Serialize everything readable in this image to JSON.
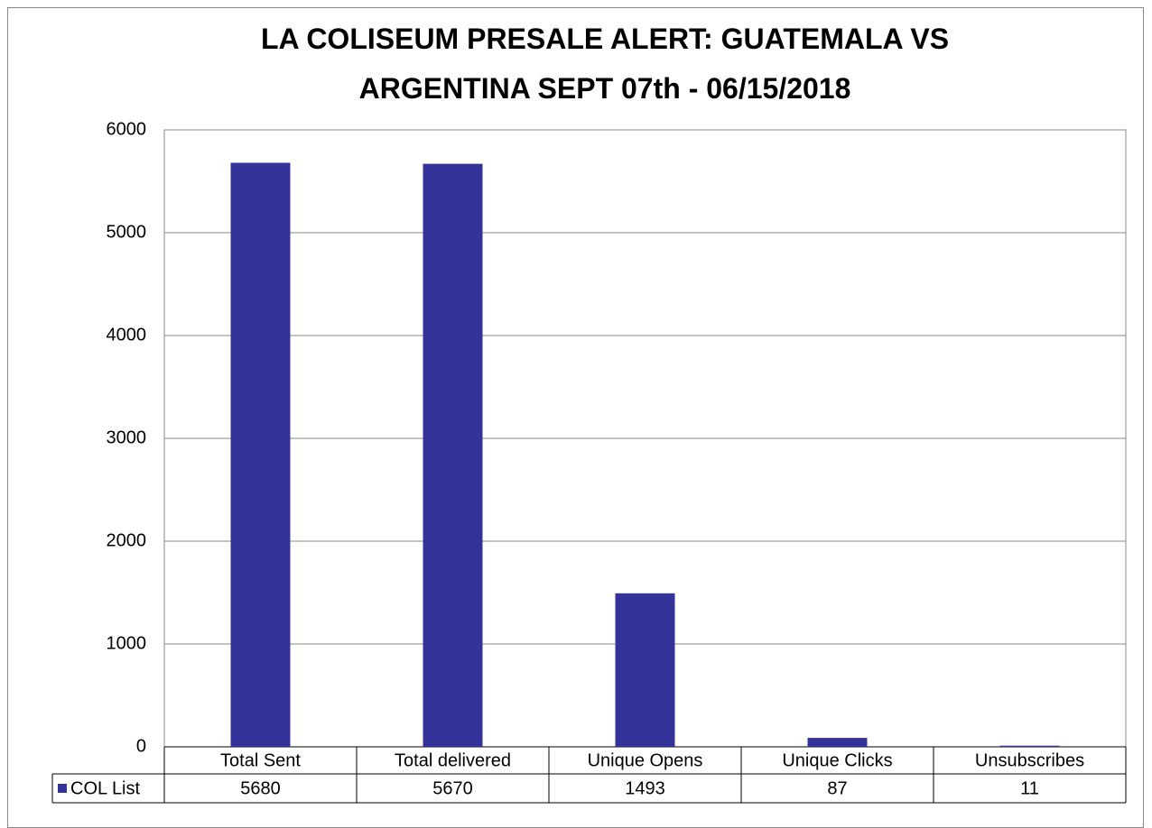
{
  "chart_data": {
    "type": "bar",
    "title": "LA COLISEUM PRESALE ALERT: GUATEMALA VS ARGENTINA SEPT 07th - 06/15/2018",
    "categories": [
      "Total Sent",
      "Total delivered",
      "Unique Opens",
      "Unique Clicks",
      "Unsubscribes"
    ],
    "series": [
      {
        "name": "COL List",
        "color": "#333399",
        "values": [
          5680,
          5670,
          1493,
          87,
          11
        ]
      }
    ],
    "ylim": [
      0,
      6000
    ],
    "yticks": [
      0,
      1000,
      2000,
      3000,
      4000,
      5000,
      6000
    ],
    "grid": true
  }
}
